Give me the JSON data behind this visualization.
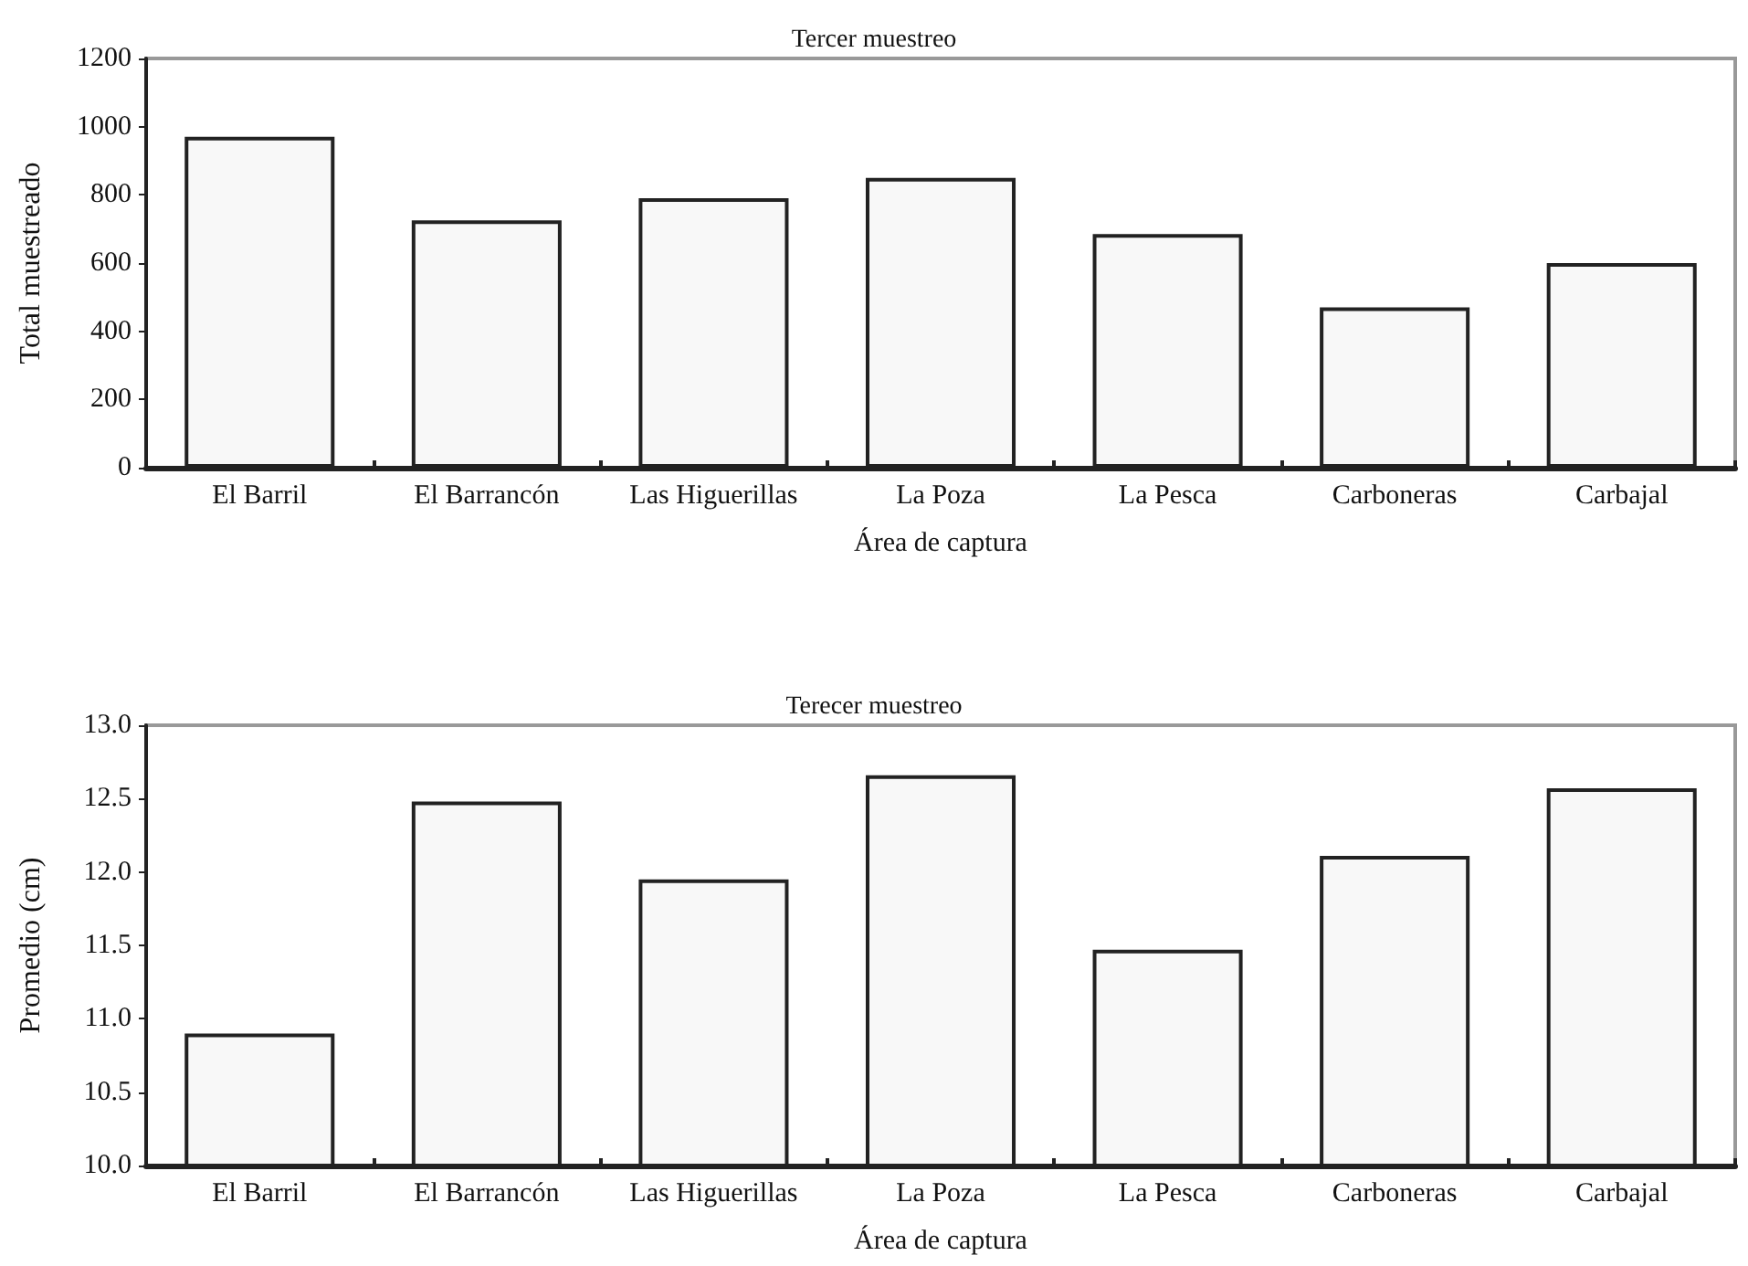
{
  "chart_data": [
    {
      "type": "bar",
      "title": "Tercer muestreo",
      "xlabel": "Área de captura",
      "ylabel": "Total muestreado",
      "categories": [
        "El Barril",
        "El Barrancón",
        "Las Higuerillas",
        "La Poza",
        "La Pesca",
        "Carboneras",
        "Carbajal"
      ],
      "values": [
        970,
        725,
        790,
        850,
        685,
        470,
        600
      ],
      "color": "#f8f8f8",
      "ylim": [
        0,
        1200
      ],
      "yticks": [
        0,
        200,
        400,
        600,
        800,
        1000,
        1200
      ],
      "grid": false
    },
    {
      "type": "bar",
      "title": "Terecer muestreo",
      "xlabel": "Área de captura",
      "ylabel": "Promedio (cm)",
      "categories": [
        "El Barril",
        "El Barrancón",
        "Las Higuerillas",
        "La Poza",
        "La Pesca",
        "Carboneras",
        "Carbajal"
      ],
      "values": [
        10.9,
        12.48,
        11.95,
        12.66,
        11.47,
        12.11,
        12.57
      ],
      "color": "#f8f8f8",
      "ylim": [
        10,
        13
      ],
      "yticks": [
        {
          "value": 10,
          "label": "10.0"
        },
        {
          "value": 10.5,
          "label": "10.5"
        },
        {
          "value": 11,
          "label": "11.0"
        },
        {
          "value": 11.5,
          "label": "11.5"
        },
        {
          "value": 12,
          "label": "12.0"
        },
        {
          "value": 12.5,
          "label": "12.5"
        },
        {
          "value": 13,
          "label": "13.0"
        }
      ],
      "grid": false
    }
  ]
}
